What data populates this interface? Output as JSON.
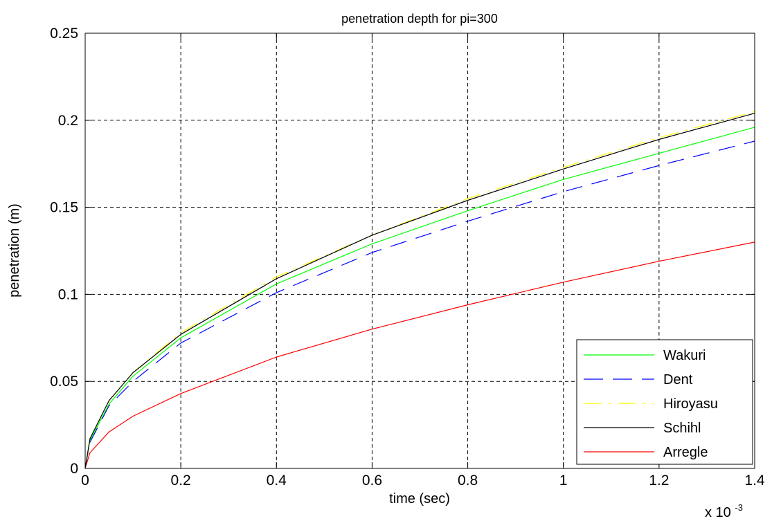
{
  "chart_data": {
    "type": "line",
    "title": "penetration depth for pi=300",
    "xlabel": "time (sec)",
    "ylabel": "penetration (m)",
    "x_multiplier": {
      "base": "x 10",
      "exponent": "-3"
    },
    "xlim": [
      0,
      1.4
    ],
    "ylim": [
      0,
      0.25
    ],
    "x_ticks": [
      0,
      0.2,
      0.4,
      0.6,
      0.8,
      1,
      1.2,
      1.4
    ],
    "y_ticks": [
      0,
      0.05,
      0.1,
      0.15,
      0.2,
      0.25
    ],
    "x_tick_labels": [
      "0",
      "0.2",
      "0.4",
      "0.6",
      "0.8",
      "1",
      "1.2",
      "1.4"
    ],
    "y_tick_labels": [
      "0",
      "0.05",
      "0.1",
      "0.15",
      "0.2",
      "0.25"
    ],
    "grid": true,
    "legend_position": "bottom-right",
    "x": [
      0,
      0.01,
      0.05,
      0.1,
      0.2,
      0.4,
      0.6,
      0.8,
      1.0,
      1.2,
      1.4
    ],
    "series": [
      {
        "name": "Wakuri",
        "color": "#00ff00",
        "dash": "solid",
        "values": [
          0,
          0.016,
          0.037,
          0.053,
          0.075,
          0.106,
          0.129,
          0.148,
          0.166,
          0.181,
          0.196
        ]
      },
      {
        "name": "Dent",
        "color": "#0000ff",
        "dash": "dash",
        "values": [
          0,
          0.015,
          0.036,
          0.05,
          0.072,
          0.101,
          0.124,
          0.142,
          0.159,
          0.174,
          0.188
        ]
      },
      {
        "name": "Hiroyasu",
        "color": "#ffff00",
        "dash": "dashdot",
        "values": [
          0,
          0.017,
          0.039,
          0.055,
          0.078,
          0.11,
          0.134,
          0.155,
          0.173,
          0.19,
          0.205
        ]
      },
      {
        "name": "Schihl",
        "color": "#000000",
        "dash": "solid",
        "values": [
          0,
          0.017,
          0.039,
          0.055,
          0.077,
          0.109,
          0.134,
          0.154,
          0.172,
          0.189,
          0.204
        ]
      },
      {
        "name": "Arregle",
        "color": "#ff0000",
        "dash": "solid",
        "values": [
          0,
          0.009,
          0.021,
          0.03,
          0.043,
          0.064,
          0.08,
          0.094,
          0.107,
          0.119,
          0.13
        ]
      }
    ]
  }
}
